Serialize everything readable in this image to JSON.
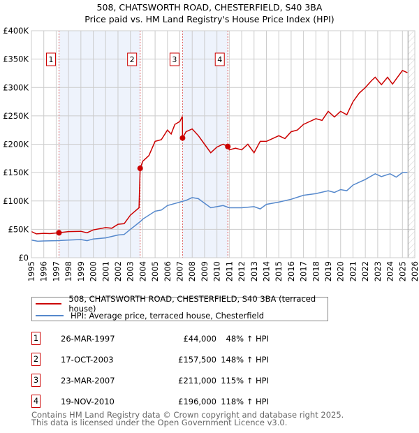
{
  "chart_data": {
    "type": "line",
    "title": "508, CHATSWORTH ROAD, CHESTERFIELD, S40 3BA",
    "subtitle": "Price paid vs. HM Land Registry's House Price Index (HPI)",
    "xlim": [
      1995,
      2026
    ],
    "ylim": [
      0,
      400000
    ],
    "x_ticks": [
      "1995",
      "1996",
      "1997",
      "1998",
      "1999",
      "2000",
      "2001",
      "2002",
      "2003",
      "2004",
      "2005",
      "2006",
      "2007",
      "2008",
      "2009",
      "2010",
      "2011",
      "2012",
      "2013",
      "2014",
      "2015",
      "2016",
      "2017",
      "2018",
      "2019",
      "2020",
      "2021",
      "2022",
      "2023",
      "2024",
      "2025",
      "2026"
    ],
    "y_ticks": [
      {
        "v": 0,
        "label": "£0"
      },
      {
        "v": 50000,
        "label": "£50K"
      },
      {
        "v": 100000,
        "label": "£100K"
      },
      {
        "v": 150000,
        "label": "£150K"
      },
      {
        "v": 200000,
        "label": "£200K"
      },
      {
        "v": 250000,
        "label": "£250K"
      },
      {
        "v": 300000,
        "label": "£300K"
      },
      {
        "v": 350000,
        "label": "£350K"
      },
      {
        "v": 400000,
        "label": "£400K"
      }
    ],
    "grid": true,
    "forecast_start": 2025.45,
    "shaded_ranges": [
      [
        1997.23,
        2003.79
      ],
      [
        2007.22,
        2010.88
      ]
    ],
    "series": [
      {
        "name": "508, CHATSWORTH ROAD, CHESTERFIELD, S40 3BA (terraced house)",
        "color": "#cc0000",
        "x": [
          1995,
          1995.4,
          1996,
          1996.5,
          1997.23,
          1998,
          1999,
          1999.5,
          2000,
          2001,
          2001.5,
          2002,
          2002.5,
          2003,
          2003.7,
          2003.79,
          2004,
          2004.5,
          2005,
          2005.5,
          2006,
          2006.3,
          2006.6,
          2007,
          2007.2,
          2007.22,
          2007.5,
          2008,
          2008.5,
          2009,
          2009.5,
          2010,
          2010.5,
          2010.88,
          2011,
          2011.5,
          2012,
          2012.5,
          2013,
          2013.5,
          2014,
          2014.5,
          2015,
          2015.5,
          2016,
          2016.5,
          2017,
          2017.5,
          2018,
          2018.5,
          2019,
          2019.5,
          2020,
          2020.5,
          2021,
          2021.5,
          2022,
          2022.5,
          2022.8,
          2023.3,
          2023.8,
          2024.2,
          2024.5,
          2025,
          2025.4
        ],
        "y": [
          46000,
          42000,
          43000,
          42500,
          44000,
          46000,
          46500,
          44000,
          49000,
          53000,
          52000,
          59000,
          60000,
          75000,
          88000,
          157500,
          170000,
          180000,
          205000,
          208000,
          225000,
          218000,
          235000,
          240000,
          249000,
          211000,
          222000,
          227000,
          215000,
          200000,
          185000,
          195000,
          200000,
          196000,
          190000,
          193000,
          190000,
          200000,
          185000,
          205000,
          205000,
          210000,
          215000,
          210000,
          222000,
          225000,
          235000,
          240000,
          245000,
          242000,
          258000,
          248000,
          258000,
          252000,
          275000,
          290000,
          300000,
          312000,
          318000,
          305000,
          318000,
          306000,
          315000,
          330000,
          326000
        ]
      },
      {
        "name": "HPI: Average price, terraced house, Chesterfield",
        "color": "#5588cc",
        "x": [
          1995,
          1995.5,
          1996,
          1997,
          1998,
          1999,
          1999.5,
          2000,
          2001,
          2002,
          2002.5,
          2003,
          2003.79,
          2004,
          2005,
          2005.5,
          2006,
          2007,
          2007.5,
          2008,
          2008.5,
          2009,
          2009.5,
          2010,
          2010.5,
          2011,
          2012,
          2013,
          2013.5,
          2014,
          2015,
          2016,
          2017,
          2018,
          2019,
          2019.5,
          2020,
          2020.5,
          2021,
          2022,
          2022.8,
          2023.3,
          2024,
          2024.5,
          2025,
          2025.4
        ],
        "y": [
          31000,
          29000,
          29500,
          30000,
          31000,
          32000,
          30000,
          33000,
          35000,
          40000,
          41000,
          50000,
          63500,
          68000,
          82000,
          84000,
          92000,
          98000,
          101000,
          106000,
          104000,
          96000,
          88000,
          90000,
          92000,
          88000,
          88000,
          90000,
          86000,
          94000,
          98000,
          103000,
          110000,
          113000,
          118000,
          115000,
          120000,
          118000,
          128000,
          138000,
          148000,
          143000,
          148000,
          142000,
          150000,
          150000
        ]
      }
    ],
    "sales": [
      {
        "id": "1",
        "x": 1997.23,
        "y": 44000,
        "date": "26-MAR-1997",
        "price": "£44,000",
        "hpi": "48% ↑ HPI"
      },
      {
        "id": "2",
        "x": 2003.79,
        "y": 157500,
        "date": "17-OCT-2003",
        "price": "£157,500",
        "hpi": "148% ↑ HPI"
      },
      {
        "id": "3",
        "x": 2007.22,
        "y": 211000,
        "date": "23-MAR-2007",
        "price": "£211,000",
        "hpi": "115% ↑ HPI"
      },
      {
        "id": "4",
        "x": 2010.88,
        "y": 196000,
        "date": "19-NOV-2010",
        "price": "£196,000",
        "hpi": "118% ↑ HPI"
      }
    ]
  },
  "footer": {
    "line1": "Contains HM Land Registry data © Crown copyright and database right 2025.",
    "line2": "This data is licensed under the Open Government Licence v3.0."
  }
}
